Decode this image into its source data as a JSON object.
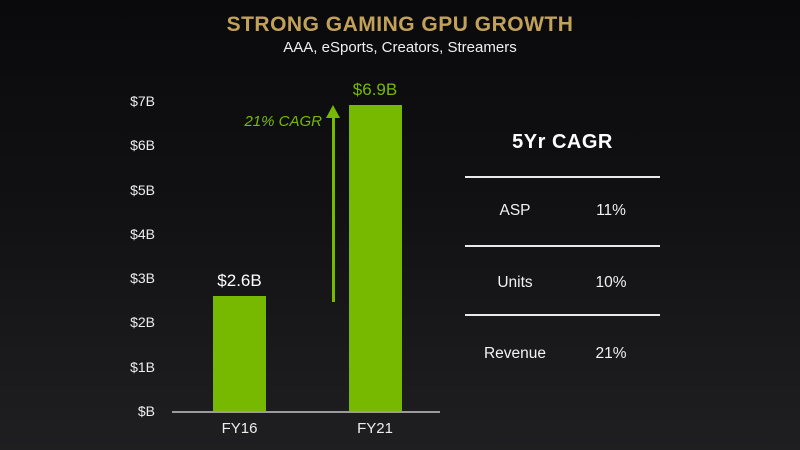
{
  "slide": {
    "title": "STRONG GAMING GPU GROWTH",
    "subtitle": "AAA, eSports, Creators, Streamers"
  },
  "chart_data": {
    "type": "bar",
    "categories": [
      "FY16",
      "FY21"
    ],
    "values": [
      2.6,
      6.9
    ],
    "bar_labels": [
      "$2.6B",
      "$6.9B"
    ],
    "bar_label_colors": [
      "#ffffff",
      "#76b900"
    ],
    "title": "",
    "xlabel": "",
    "ylabel": "",
    "ylim": [
      0,
      7
    ],
    "yticks": [
      "$B",
      "$1B",
      "$2B",
      "$3B",
      "$4B",
      "$5B",
      "$6B",
      "$7B"
    ],
    "grid": false,
    "legend": "none",
    "bar_color": "#76b900",
    "annotation": "21% CAGR",
    "annotation_style": "green italic text with vertical green growth arrow between bars"
  },
  "cagr_table": {
    "header": "5Yr CAGR",
    "rows": [
      {
        "label": "ASP",
        "value": "11%"
      },
      {
        "label": "Units",
        "value": "10%"
      },
      {
        "label": "Revenue",
        "value": "21%"
      }
    ]
  },
  "colors": {
    "accent_green": "#76b900",
    "title_gold": "#c2a159",
    "background_top": "#0a0a0c",
    "background_bottom": "#1f1f22",
    "text": "#f0f0f0",
    "axis_line": "#9b9b9b"
  }
}
